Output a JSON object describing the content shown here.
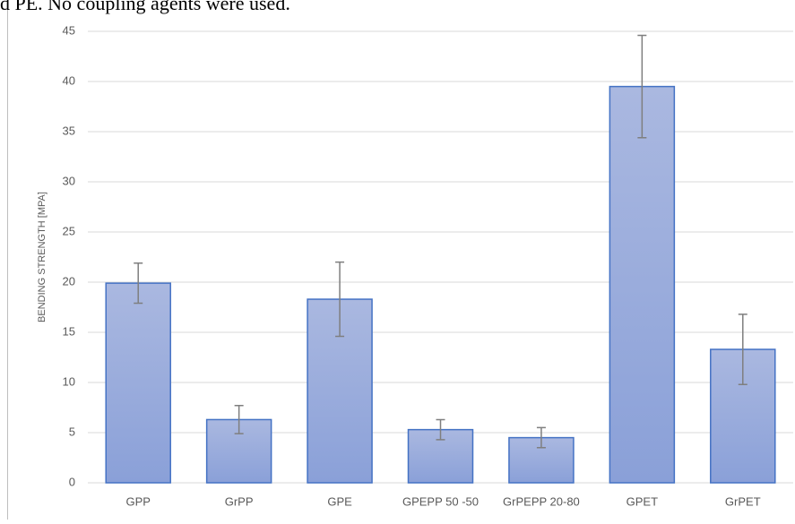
{
  "text_above": "d PE. No coupling agents were used.",
  "chart_data": {
    "type": "bar",
    "y_label": "BENDING STRENGTH [MPA]",
    "categories": [
      "GPP",
      "GrPP",
      "GPE",
      "GPEPP 50 -50",
      "GrPEPP 20-80",
      "GPET",
      "GrPET"
    ],
    "values": [
      19.9,
      6.3,
      18.3,
      5.3,
      4.5,
      39.5,
      13.3
    ],
    "errors": [
      2.0,
      1.4,
      3.7,
      1.0,
      1.0,
      5.1,
      3.5
    ],
    "color": "#4472c4",
    "error_color": "#7f7f7f",
    "ylim": [
      0,
      45
    ],
    "yticks": [
      0,
      5,
      10,
      15,
      20,
      25,
      30,
      35,
      40,
      45
    ],
    "grid": true
  }
}
